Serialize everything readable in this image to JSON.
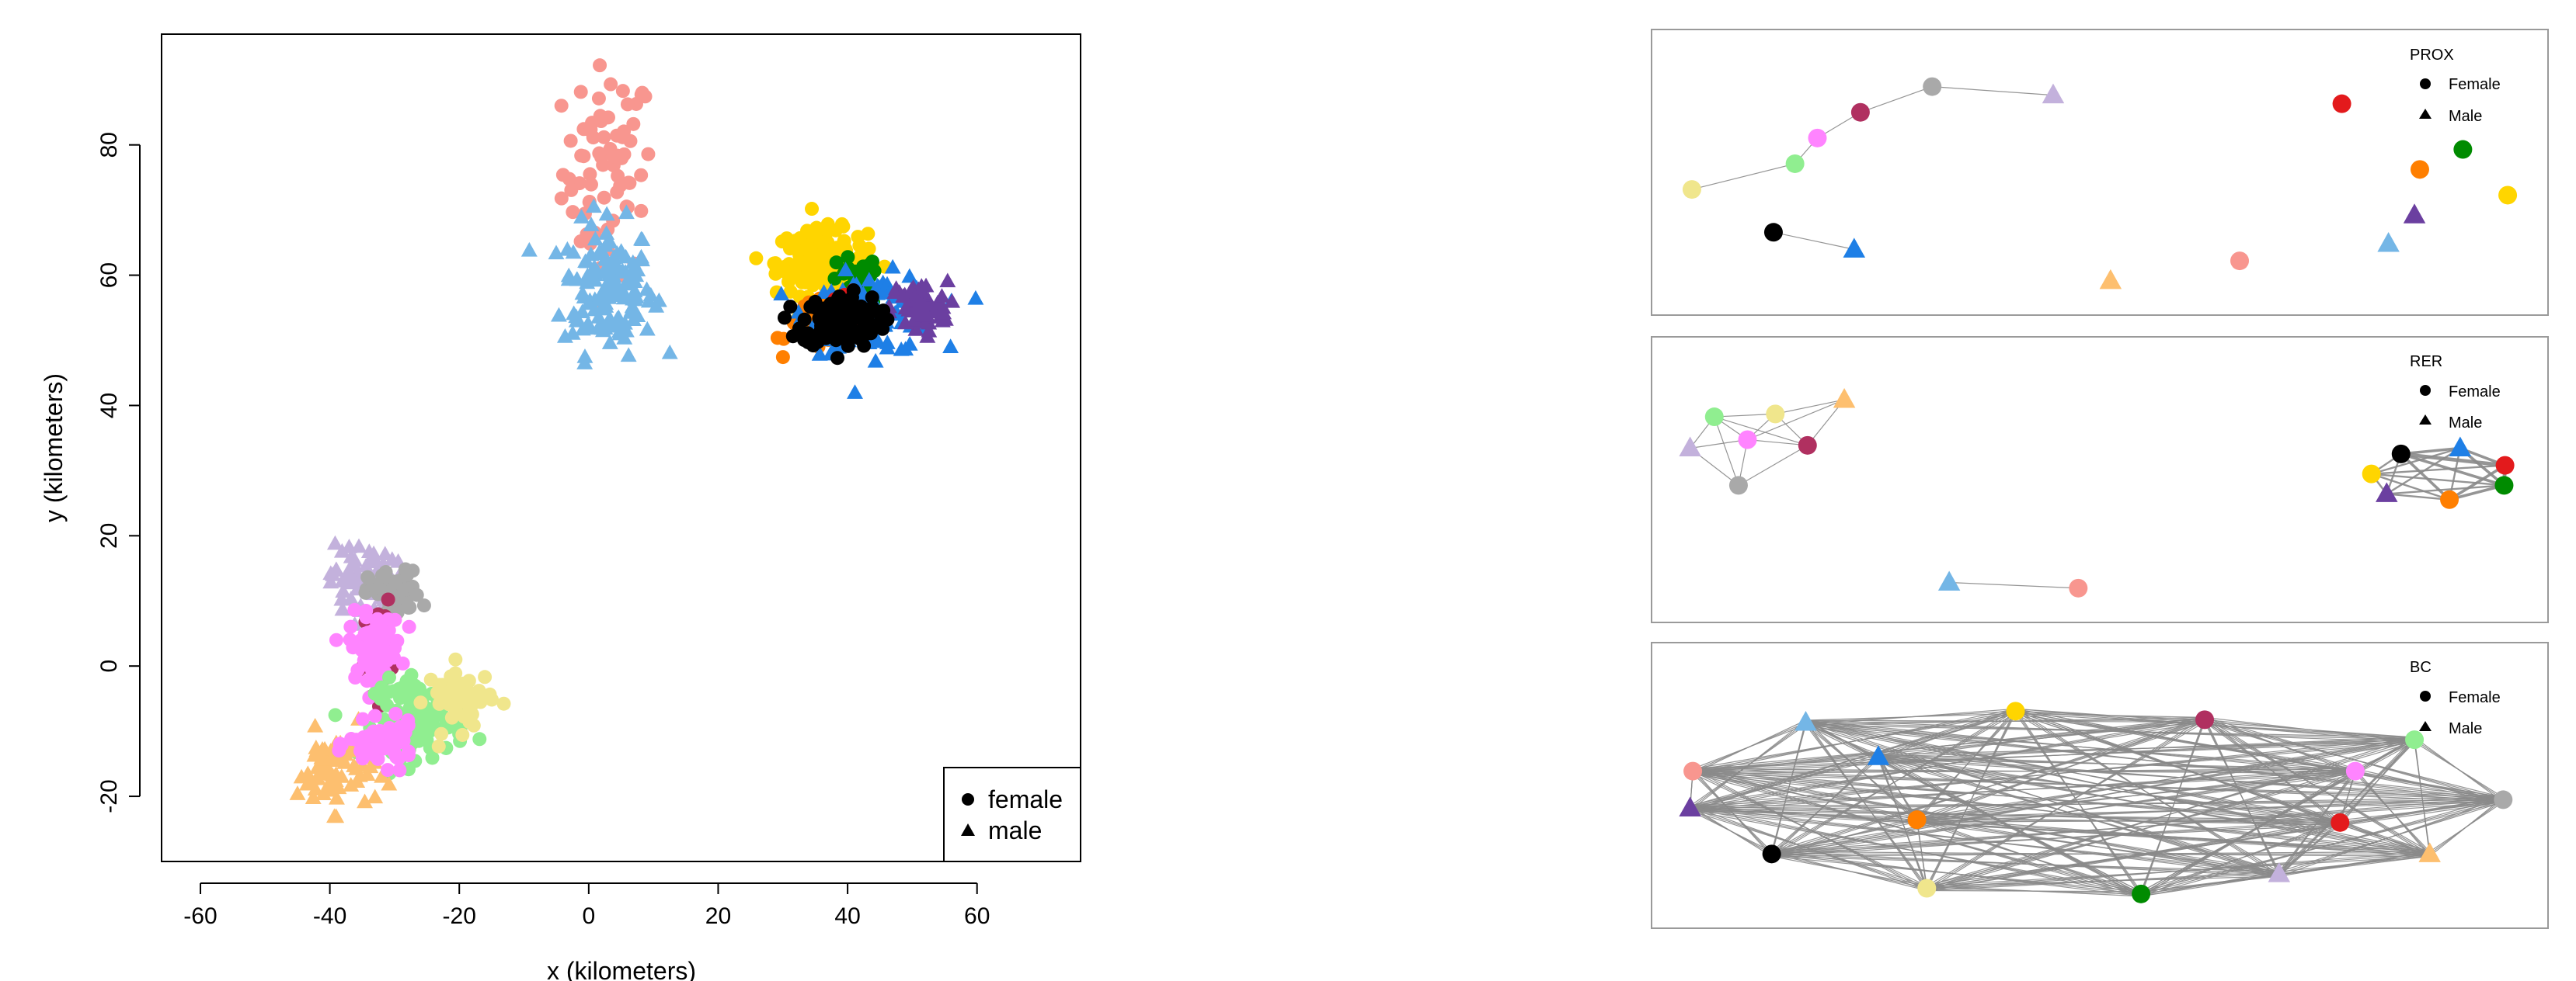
{
  "chart_data": [
    {
      "type": "scatter",
      "xlabel": "x (kilometers)",
      "ylabel": "y (kilometers)",
      "xlim": [
        -66,
        76
      ],
      "ylim": [
        -30,
        97
      ],
      "xticks": [
        -60,
        -40,
        -20,
        0,
        20,
        40,
        60
      ],
      "yticks": [
        -20,
        0,
        20,
        40,
        60,
        80
      ],
      "grid": false,
      "legend": {
        "position": "bottom-right",
        "entries": [
          {
            "label": "female",
            "shape": "circle"
          },
          {
            "label": "male",
            "shape": "triangle"
          }
        ]
      },
      "series": [
        {
          "color": "#F8968F",
          "shape": "circle",
          "cx": 3,
          "cy": 76,
          "sx": 3.5,
          "sy": 8,
          "n": 70
        },
        {
          "color": "#74B6E6",
          "shape": "triangle",
          "cx": 3,
          "cy": 58,
          "sx": 3.5,
          "sy": 5,
          "n": 140
        },
        {
          "color": "#FFD500",
          "shape": "circle",
          "cx": 36,
          "cy": 62,
          "sx": 3.5,
          "sy": 2.5,
          "n": 180
        },
        {
          "color": "#008B00",
          "shape": "circle",
          "cx": 41,
          "cy": 59,
          "sx": 2,
          "sy": 2,
          "n": 25
        },
        {
          "color": "#FF7F00",
          "shape": "circle",
          "cx": 35,
          "cy": 52,
          "sx": 2.2,
          "sy": 1.8,
          "n": 30
        },
        {
          "color": "#1E7FE6",
          "shape": "triangle",
          "cx": 44,
          "cy": 54,
          "sx": 5,
          "sy": 3,
          "n": 110
        },
        {
          "color": "#6B3FA0",
          "shape": "triangle",
          "cx": 51,
          "cy": 55,
          "sx": 2.2,
          "sy": 2,
          "n": 70
        },
        {
          "color": "#E31A1C",
          "shape": "circle",
          "cx": 40,
          "cy": 55,
          "sx": 2,
          "sy": 2,
          "n": 8
        },
        {
          "color": "#000000",
          "shape": "circle",
          "cx": 39,
          "cy": 53,
          "sx": 3,
          "sy": 2,
          "n": 130
        },
        {
          "color": "#C3B1DC",
          "shape": "triangle",
          "cx": -35,
          "cy": 13,
          "sx": 2.5,
          "sy": 3,
          "n": 70
        },
        {
          "color": "#A9A9A9",
          "shape": "circle",
          "cx": -30,
          "cy": 11,
          "sx": 2,
          "sy": 1.8,
          "n": 70
        },
        {
          "color": "#B03060",
          "shape": "circle",
          "cx": -33,
          "cy": 3,
          "sx": 1.2,
          "sy": 3.5,
          "n": 35
        },
        {
          "color": "#FF84FF",
          "shape": "circle",
          "cx": -33,
          "cy": 3,
          "sx": 2,
          "sy": 2.5,
          "n": 80
        },
        {
          "color": "#90EE90",
          "shape": "circle",
          "cx": -26,
          "cy": -8,
          "sx": 3.5,
          "sy": 3,
          "n": 100
        },
        {
          "color": "#F0E68C",
          "shape": "circle",
          "cx": -20,
          "cy": -5,
          "sx": 2.5,
          "sy": 2.5,
          "n": 50
        },
        {
          "color": "#FDBF6F",
          "shape": "triangle",
          "cx": -39,
          "cy": -16,
          "sx": 3,
          "sy": 3,
          "n": 70
        },
        {
          "color": "#FF84FF",
          "shape": "circle",
          "cx": -32,
          "cy": -12,
          "sx": 2.5,
          "sy": 1.6,
          "n": 70
        }
      ]
    },
    {
      "type": "network",
      "title": "PROX",
      "legend": {
        "position": "top-right",
        "entries": [
          {
            "label": "Female",
            "shape": "circle"
          },
          {
            "label": "Male",
            "shape": "triangle"
          }
        ]
      },
      "nodes": [
        {
          "color": "#F0E68C",
          "shape": "circle",
          "x": 0.045,
          "y": 0.56
        },
        {
          "color": "#90EE90",
          "shape": "circle",
          "x": 0.16,
          "y": 0.47
        },
        {
          "color": "#FF84FF",
          "shape": "circle",
          "x": 0.185,
          "y": 0.38
        },
        {
          "color": "#B03060",
          "shape": "circle",
          "x": 0.233,
          "y": 0.29
        },
        {
          "color": "#A9A9A9",
          "shape": "circle",
          "x": 0.313,
          "y": 0.2
        },
        {
          "color": "#C3B1DC",
          "shape": "triangle",
          "x": 0.448,
          "y": 0.23
        },
        {
          "color": "#000000",
          "shape": "circle",
          "x": 0.136,
          "y": 0.71
        },
        {
          "color": "#1E7FE6",
          "shape": "triangle",
          "x": 0.226,
          "y": 0.77
        },
        {
          "color": "#FDBF6F",
          "shape": "triangle",
          "x": 0.512,
          "y": 0.88
        },
        {
          "color": "#F8968F",
          "shape": "circle",
          "x": 0.656,
          "y": 0.81
        },
        {
          "color": "#E31A1C",
          "shape": "circle",
          "x": 0.77,
          "y": 0.26
        },
        {
          "color": "#FF7F00",
          "shape": "circle",
          "x": 0.857,
          "y": 0.49
        },
        {
          "color": "#008B00",
          "shape": "circle",
          "x": 0.905,
          "y": 0.42
        },
        {
          "color": "#6B3FA0",
          "shape": "triangle",
          "x": 0.851,
          "y": 0.65
        },
        {
          "color": "#74B6E6",
          "shape": "triangle",
          "x": 0.822,
          "y": 0.75
        },
        {
          "color": "#FFD500",
          "shape": "circle",
          "x": 0.955,
          "y": 0.58
        }
      ],
      "edges": [
        [
          0,
          1,
          1
        ],
        [
          1,
          2,
          1
        ],
        [
          2,
          3,
          1
        ],
        [
          3,
          4,
          1
        ],
        [
          4,
          5,
          1
        ],
        [
          6,
          7,
          1
        ]
      ]
    },
    {
      "type": "network",
      "title": "RER",
      "legend": {
        "position": "top-right",
        "entries": [
          {
            "label": "Female",
            "shape": "circle"
          },
          {
            "label": "Male",
            "shape": "triangle"
          }
        ]
      },
      "nodes": [
        {
          "color": "#90EE90",
          "shape": "circle",
          "x": 0.07,
          "y": 0.28
        },
        {
          "color": "#F0E68C",
          "shape": "circle",
          "x": 0.138,
          "y": 0.27
        },
        {
          "color": "#FDBF6F",
          "shape": "triangle",
          "x": 0.215,
          "y": 0.22
        },
        {
          "color": "#C3B1DC",
          "shape": "triangle",
          "x": 0.043,
          "y": 0.39
        },
        {
          "color": "#FF84FF",
          "shape": "circle",
          "x": 0.107,
          "y": 0.36
        },
        {
          "color": "#B03060",
          "shape": "circle",
          "x": 0.174,
          "y": 0.38
        },
        {
          "color": "#A9A9A9",
          "shape": "circle",
          "x": 0.097,
          "y": 0.52
        },
        {
          "color": "#000000",
          "shape": "circle",
          "x": 0.836,
          "y": 0.41
        },
        {
          "color": "#1E7FE6",
          "shape": "triangle",
          "x": 0.902,
          "y": 0.39
        },
        {
          "color": "#E31A1C",
          "shape": "circle",
          "x": 0.952,
          "y": 0.45
        },
        {
          "color": "#FFD500",
          "shape": "circle",
          "x": 0.803,
          "y": 0.48
        },
        {
          "color": "#6B3FA0",
          "shape": "triangle",
          "x": 0.82,
          "y": 0.55
        },
        {
          "color": "#FF7F00",
          "shape": "circle",
          "x": 0.89,
          "y": 0.57
        },
        {
          "color": "#008B00",
          "shape": "circle",
          "x": 0.951,
          "y": 0.52
        },
        {
          "color": "#74B6E6",
          "shape": "triangle",
          "x": 0.332,
          "y": 0.86
        },
        {
          "color": "#F8968F",
          "shape": "circle",
          "x": 0.476,
          "y": 0.88
        }
      ],
      "edges": [
        [
          0,
          1,
          1
        ],
        [
          0,
          3,
          1
        ],
        [
          0,
          4,
          1
        ],
        [
          0,
          6,
          1
        ],
        [
          1,
          2,
          1
        ],
        [
          1,
          4,
          1
        ],
        [
          1,
          5,
          1
        ],
        [
          2,
          5,
          1
        ],
        [
          3,
          4,
          1
        ],
        [
          3,
          6,
          1
        ],
        [
          4,
          5,
          1
        ],
        [
          4,
          6,
          1
        ],
        [
          5,
          6,
          1
        ],
        [
          0,
          5,
          1
        ],
        [
          2,
          4,
          1
        ],
        [
          7,
          8,
          3
        ],
        [
          7,
          9,
          4
        ],
        [
          7,
          10,
          2
        ],
        [
          7,
          11,
          2
        ],
        [
          7,
          12,
          3
        ],
        [
          7,
          13,
          3
        ],
        [
          8,
          9,
          3
        ],
        [
          8,
          10,
          2
        ],
        [
          8,
          12,
          2
        ],
        [
          8,
          13,
          3
        ],
        [
          8,
          11,
          2
        ],
        [
          9,
          12,
          3
        ],
        [
          9,
          13,
          4
        ],
        [
          9,
          10,
          2
        ],
        [
          10,
          11,
          2
        ],
        [
          10,
          12,
          2
        ],
        [
          11,
          12,
          2
        ],
        [
          11,
          13,
          2
        ],
        [
          12,
          13,
          3
        ],
        [
          10,
          13,
          2
        ],
        [
          14,
          15,
          1
        ]
      ]
    },
    {
      "type": "network",
      "title": "BC",
      "layout": "complete",
      "legend": {
        "position": "top-right",
        "entries": [
          {
            "label": "Female",
            "shape": "circle"
          },
          {
            "label": "Male",
            "shape": "triangle"
          }
        ]
      },
      "nodes": [
        {
          "color": "#F8968F",
          "shape": "circle",
          "x": 0.046,
          "y": 0.45
        },
        {
          "color": "#6B3FA0",
          "shape": "triangle",
          "x": 0.043,
          "y": 0.58
        },
        {
          "color": "#74B6E6",
          "shape": "triangle",
          "x": 0.172,
          "y": 0.28
        },
        {
          "color": "#1E7FE6",
          "shape": "triangle",
          "x": 0.253,
          "y": 0.4
        },
        {
          "color": "#FFD500",
          "shape": "circle",
          "x": 0.406,
          "y": 0.24
        },
        {
          "color": "#B03060",
          "shape": "circle",
          "x": 0.617,
          "y": 0.27
        },
        {
          "color": "#FF84FF",
          "shape": "circle",
          "x": 0.785,
          "y": 0.45
        },
        {
          "color": "#90EE90",
          "shape": "circle",
          "x": 0.851,
          "y": 0.34
        },
        {
          "color": "#A9A9A9",
          "shape": "circle",
          "x": 0.95,
          "y": 0.55
        },
        {
          "color": "#FDBF6F",
          "shape": "triangle",
          "x": 0.868,
          "y": 0.74
        },
        {
          "color": "#E31A1C",
          "shape": "circle",
          "x": 0.768,
          "y": 0.63
        },
        {
          "color": "#C3B1DC",
          "shape": "triangle",
          "x": 0.7,
          "y": 0.81
        },
        {
          "color": "#008B00",
          "shape": "circle",
          "x": 0.546,
          "y": 0.88
        },
        {
          "color": "#F0E68C",
          "shape": "circle",
          "x": 0.307,
          "y": 0.86
        },
        {
          "color": "#000000",
          "shape": "circle",
          "x": 0.134,
          "y": 0.74
        },
        {
          "color": "#FF7F00",
          "shape": "circle",
          "x": 0.296,
          "y": 0.62
        }
      ]
    }
  ]
}
